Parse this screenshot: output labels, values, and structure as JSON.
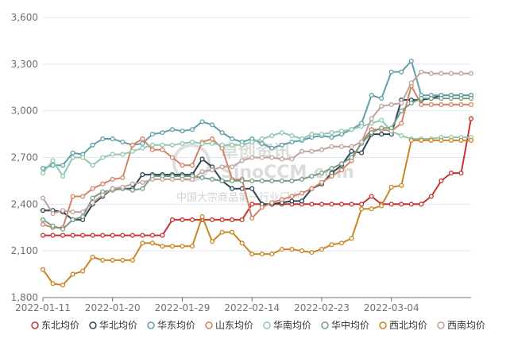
{
  "chart_data": {
    "type": "line",
    "x": [
      "2022-01-11",
      "2022-01-12",
      "2022-01-13",
      "2022-01-14",
      "2022-01-17",
      "2022-01-18",
      "2022-01-19",
      "2022-01-20",
      "2022-01-21",
      "2022-01-24",
      "2022-01-25",
      "2022-01-26",
      "2022-01-27",
      "2022-01-28",
      "2022-01-29",
      "2022-01-30",
      "2022-02-07",
      "2022-02-08",
      "2022-02-09",
      "2022-02-10",
      "2022-02-11",
      "2022-02-14",
      "2022-02-15",
      "2022-02-16",
      "2022-02-17",
      "2022-02-18",
      "2022-02-21",
      "2022-02-22",
      "2022-02-23",
      "2022-02-24",
      "2022-02-25",
      "2022-02-28",
      "2022-03-01",
      "2022-03-02",
      "2022-03-03",
      "2022-03-04",
      "2022-03-07",
      "2022-03-08",
      "2022-03-09",
      "2022-03-10",
      "2022-03-11",
      "2022-03-14",
      "2022-03-15",
      "2022-03-16"
    ],
    "x_ticks": [
      "2022-01-11",
      "2022-01-20",
      "2022-01-29",
      "2022-02-14",
      "2022-02-23",
      "2022-03-04"
    ],
    "y_ticks": [
      "1,800",
      "2,100",
      "2,400",
      "2,700",
      "3,000",
      "3,300",
      "3,600"
    ],
    "ylim": [
      1800,
      3600
    ],
    "grid": true,
    "legend_position": "bottom",
    "series": [
      {
        "name": "东北均价",
        "color": "#c23531",
        "values": [
          2200,
          2200,
          2200,
          2200,
          2200,
          2200,
          2200,
          2200,
          2200,
          2200,
          2200,
          2200,
          2200,
          2300,
          2300,
          2300,
          2300,
          2300,
          2300,
          2300,
          2300,
          2400,
          2400,
          2400,
          2400,
          2400,
          2400,
          2400,
          2400,
          2400,
          2400,
          2400,
          2400,
          2450,
          2400,
          2400,
          2400,
          2400,
          2400,
          2450,
          2550,
          2600,
          2600,
          2950
        ]
      },
      {
        "name": "华北均价",
        "color": "#2f4554",
        "values": [
          2360,
          2360,
          2350,
          2300,
          2300,
          2400,
          2450,
          2500,
          2500,
          2500,
          2590,
          2590,
          2590,
          2590,
          2590,
          2590,
          2690,
          2640,
          2550,
          2500,
          2500,
          2500,
          2400,
          2400,
          2410,
          2420,
          2420,
          2500,
          2530,
          2600,
          2650,
          2740,
          2730,
          2850,
          2850,
          2850,
          3070,
          3070,
          3070,
          3080,
          3100,
          3100,
          3100,
          3100
        ]
      },
      {
        "name": "华东均价",
        "color": "#61a0a8",
        "values": [
          2630,
          2650,
          2650,
          2730,
          2720,
          2780,
          2820,
          2820,
          2800,
          2780,
          2790,
          2850,
          2860,
          2880,
          2870,
          2880,
          2930,
          2910,
          2860,
          2820,
          2800,
          2820,
          2790,
          2760,
          2780,
          2800,
          2810,
          2830,
          2840,
          2830,
          2850,
          2880,
          2920,
          3100,
          3080,
          3250,
          3250,
          3320,
          3100,
          3100,
          3100,
          3100,
          3100,
          3100
        ]
      },
      {
        "name": "山东均价",
        "color": "#d48265",
        "values": [
          2270,
          2250,
          2250,
          2450,
          2450,
          2500,
          2530,
          2560,
          2570,
          2780,
          2820,
          2750,
          2750,
          2700,
          2650,
          2650,
          2800,
          2820,
          2760,
          2560,
          2560,
          2310,
          2380,
          2410,
          2430,
          2450,
          2470,
          2500,
          2540,
          2580,
          2620,
          2680,
          2800,
          2880,
          2880,
          2870,
          2920,
          3160,
          3040,
          3040,
          3040,
          3040,
          3040,
          3040
        ]
      },
      {
        "name": "华南均价",
        "color": "#91c7ae",
        "values": [
          2600,
          2680,
          2580,
          2700,
          2700,
          2650,
          2700,
          2720,
          2720,
          2740,
          2760,
          2780,
          2780,
          2780,
          2790,
          2800,
          2790,
          2790,
          2780,
          2780,
          2780,
          2800,
          2820,
          2840,
          2860,
          2840,
          2820,
          2850,
          2850,
          2860,
          2870,
          2880,
          2900,
          2920,
          2940,
          2870,
          2840,
          2820,
          2820,
          2820,
          2830,
          2830,
          2830,
          2830
        ]
      },
      {
        "name": "华中均价",
        "color": "#749f83",
        "values": [
          2300,
          2260,
          2240,
          2300,
          2320,
          2440,
          2480,
          2490,
          2500,
          2490,
          2500,
          2580,
          2580,
          2580,
          2580,
          2580,
          2570,
          2560,
          2550,
          2550,
          2550,
          2550,
          2550,
          2550,
          2550,
          2550,
          2560,
          2580,
          2600,
          2630,
          2660,
          2700,
          2790,
          2860,
          2890,
          2890,
          3000,
          3050,
          3080,
          3080,
          3080,
          3080,
          3080,
          3080
        ]
      },
      {
        "name": "西北均价",
        "color": "#ca8622",
        "values": [
          1980,
          1890,
          1880,
          1950,
          1970,
          2060,
          2040,
          2040,
          2040,
          2040,
          2150,
          2150,
          2130,
          2130,
          2130,
          2130,
          2320,
          2160,
          2220,
          2220,
          2150,
          2080,
          2080,
          2080,
          2110,
          2110,
          2100,
          2090,
          2110,
          2140,
          2150,
          2180,
          2370,
          2370,
          2390,
          2510,
          2520,
          2810,
          2810,
          2810,
          2810,
          2810,
          2810,
          2810
        ]
      },
      {
        "name": "西南均价",
        "color": "#bda29a",
        "values": [
          2440,
          2340,
          2360,
          2350,
          2350,
          2410,
          2460,
          2500,
          2510,
          2530,
          2540,
          2560,
          2560,
          2560,
          2560,
          2560,
          2610,
          2620,
          2640,
          2640,
          2680,
          2700,
          2700,
          2700,
          2690,
          2690,
          2740,
          2740,
          2750,
          2770,
          2770,
          2770,
          2800,
          2950,
          3030,
          3040,
          3050,
          3180,
          3250,
          3240,
          3240,
          3240,
          3240,
          3240
        ]
      }
    ]
  },
  "watermark": {
    "brand_cn": "卓创资讯",
    "brand_en": "SinoCCM.com",
    "caption": "中国大宗商品第一行业门户"
  }
}
